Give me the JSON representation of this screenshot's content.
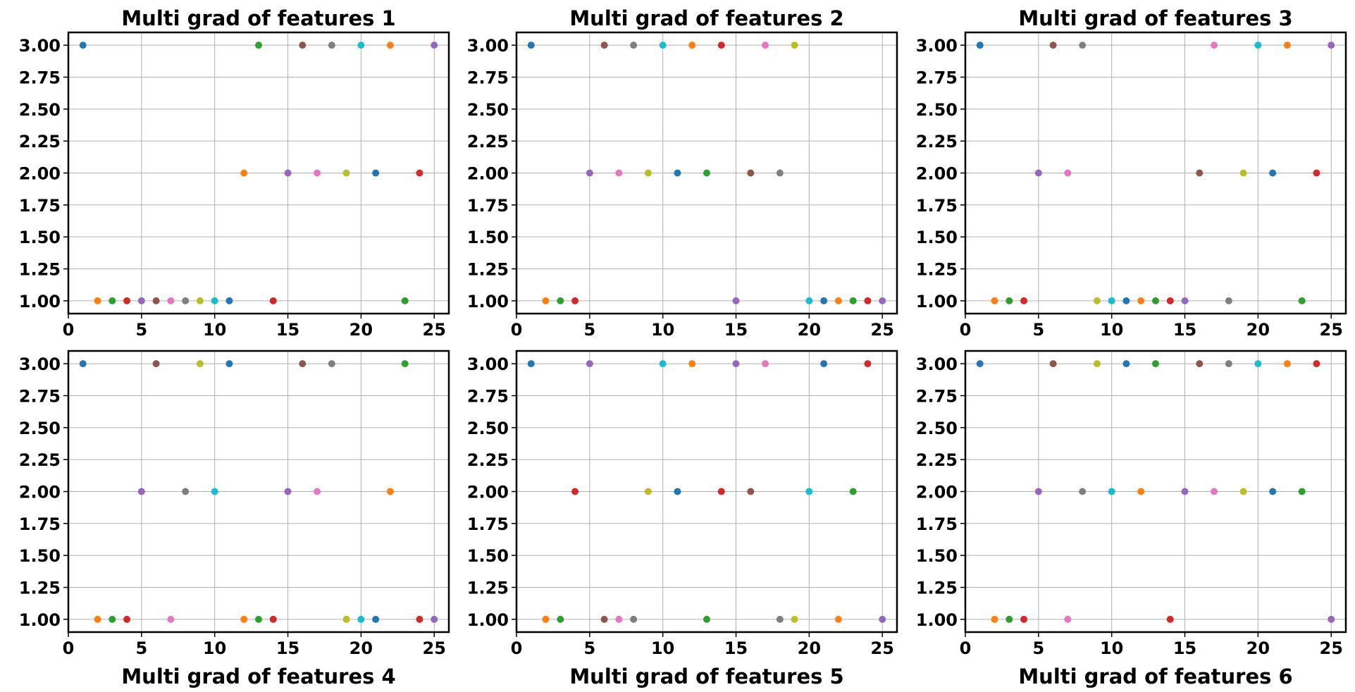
{
  "colors": [
    "#1f77b4",
    "#ff7f0e",
    "#2ca02c",
    "#d62728",
    "#9467bd",
    "#8c564b",
    "#e377c2",
    "#7f7f7f",
    "#bcbd22",
    "#17becf"
  ],
  "chart_data": [
    {
      "type": "scatter",
      "title": "Multi grad of features 1",
      "title_position": "top",
      "xlim": [
        0,
        26
      ],
      "ylim": [
        0.9,
        3.1
      ],
      "xticks": [
        "0",
        "5",
        "10",
        "15",
        "20",
        "25"
      ],
      "yticks": [
        "1.00",
        "1.25",
        "1.50",
        "1.75",
        "2.00",
        "2.25",
        "2.50",
        "2.75",
        "3.00"
      ],
      "grid": true,
      "x": [
        1,
        2,
        3,
        4,
        5,
        6,
        7,
        8,
        9,
        10,
        11,
        12,
        13,
        14,
        15,
        16,
        17,
        18,
        19,
        20,
        21,
        22,
        23,
        24,
        25
      ],
      "y": [
        3,
        1,
        1,
        1,
        1,
        1,
        1,
        1,
        1,
        1,
        1,
        2,
        3,
        1,
        2,
        3,
        2,
        3,
        2,
        3,
        2,
        3,
        1,
        2,
        3
      ]
    },
    {
      "type": "scatter",
      "title": "Multi grad of features 2",
      "title_position": "top",
      "xlim": [
        0,
        26
      ],
      "ylim": [
        0.9,
        3.1
      ],
      "xticks": [
        "0",
        "5",
        "10",
        "15",
        "20",
        "25"
      ],
      "yticks": [
        "1.00",
        "1.25",
        "1.50",
        "1.75",
        "2.00",
        "2.25",
        "2.50",
        "2.75",
        "3.00"
      ],
      "grid": true,
      "x": [
        1,
        2,
        3,
        4,
        5,
        6,
        7,
        8,
        9,
        10,
        11,
        12,
        13,
        14,
        15,
        16,
        17,
        18,
        19,
        20,
        21,
        22,
        23,
        24,
        25
      ],
      "y": [
        3,
        1,
        1,
        1,
        2,
        3,
        2,
        3,
        2,
        3,
        2,
        3,
        2,
        3,
        1,
        2,
        3,
        2,
        3,
        1,
        1,
        1,
        1,
        1,
        1
      ]
    },
    {
      "type": "scatter",
      "title": "Multi grad of features 3",
      "title_position": "top",
      "xlim": [
        0,
        26
      ],
      "ylim": [
        0.9,
        3.1
      ],
      "xticks": [
        "0",
        "5",
        "10",
        "15",
        "20",
        "25"
      ],
      "yticks": [
        "1.00",
        "1.25",
        "1.50",
        "1.75",
        "2.00",
        "2.25",
        "2.50",
        "2.75",
        "3.00"
      ],
      "grid": true,
      "x": [
        1,
        2,
        3,
        4,
        5,
        6,
        7,
        8,
        9,
        10,
        11,
        12,
        13,
        14,
        15,
        16,
        17,
        18,
        19,
        20,
        21,
        22,
        23,
        24,
        25
      ],
      "y": [
        3,
        1,
        1,
        1,
        2,
        3,
        2,
        3,
        1,
        1,
        1,
        1,
        1,
        1,
        1,
        2,
        3,
        1,
        2,
        3,
        2,
        3,
        1,
        2,
        3
      ]
    },
    {
      "type": "scatter",
      "title": "Multi grad of features 4",
      "title_position": "bottom",
      "xlim": [
        0,
        26
      ],
      "ylim": [
        0.9,
        3.1
      ],
      "xticks": [
        "0",
        "5",
        "10",
        "15",
        "20",
        "25"
      ],
      "yticks": [
        "1.00",
        "1.25",
        "1.50",
        "1.75",
        "2.00",
        "2.25",
        "2.50",
        "2.75",
        "3.00"
      ],
      "grid": true,
      "x": [
        1,
        2,
        3,
        4,
        5,
        6,
        7,
        8,
        9,
        10,
        11,
        12,
        13,
        14,
        15,
        16,
        17,
        18,
        19,
        20,
        21,
        22,
        23,
        24,
        25
      ],
      "y": [
        3,
        1,
        1,
        1,
        2,
        3,
        1,
        2,
        3,
        2,
        3,
        1,
        1,
        1,
        2,
        3,
        2,
        3,
        1,
        1,
        1,
        2,
        3,
        1,
        1
      ]
    },
    {
      "type": "scatter",
      "title": "Multi grad of features 5",
      "title_position": "bottom",
      "xlim": [
        0,
        26
      ],
      "ylim": [
        0.9,
        3.1
      ],
      "xticks": [
        "0",
        "5",
        "10",
        "15",
        "20",
        "25"
      ],
      "yticks": [
        "1.00",
        "1.25",
        "1.50",
        "1.75",
        "2.00",
        "2.25",
        "2.50",
        "2.75",
        "3.00"
      ],
      "grid": true,
      "x": [
        1,
        2,
        3,
        4,
        5,
        6,
        7,
        8,
        9,
        10,
        11,
        12,
        13,
        14,
        15,
        16,
        17,
        18,
        19,
        20,
        21,
        22,
        23,
        24,
        25
      ],
      "y": [
        3,
        1,
        1,
        2,
        3,
        1,
        1,
        1,
        2,
        3,
        2,
        3,
        1,
        2,
        3,
        2,
        3,
        1,
        1,
        2,
        3,
        1,
        2,
        3,
        1
      ]
    },
    {
      "type": "scatter",
      "title": "Multi grad of features 6",
      "title_position": "bottom",
      "xlim": [
        0,
        26
      ],
      "ylim": [
        0.9,
        3.1
      ],
      "xticks": [
        "0",
        "5",
        "10",
        "15",
        "20",
        "25"
      ],
      "yticks": [
        "1.00",
        "1.25",
        "1.50",
        "1.75",
        "2.00",
        "2.25",
        "2.50",
        "2.75",
        "3.00"
      ],
      "grid": true,
      "x": [
        1,
        2,
        3,
        4,
        5,
        6,
        7,
        8,
        9,
        10,
        11,
        12,
        13,
        14,
        15,
        16,
        17,
        18,
        19,
        20,
        21,
        22,
        23,
        24,
        25
      ],
      "y": [
        3,
        1,
        1,
        1,
        2,
        3,
        1,
        2,
        3,
        2,
        3,
        2,
        3,
        1,
        2,
        3,
        2,
        3,
        2,
        3,
        2,
        3,
        2,
        3,
        1
      ]
    }
  ]
}
